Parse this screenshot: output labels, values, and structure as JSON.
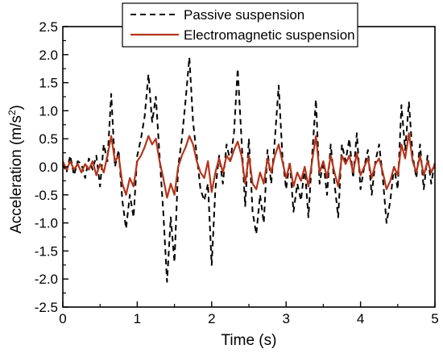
{
  "chart_data": {
    "type": "line",
    "xlabel": "Time (s)",
    "ylabel_main": "Acceleration (m/s",
    "ylabel_sup": "2",
    "ylabel_close": ")",
    "xlim": [
      0,
      5
    ],
    "ylim": [
      -2.5,
      2.5
    ],
    "xticks": [
      "0",
      "1",
      "2",
      "3",
      "4",
      "5"
    ],
    "yticks": [
      "2.5",
      "2.0",
      "1.5",
      "1.0",
      "0.5",
      "0.0",
      "-0.5",
      "-1.0",
      "-1.5",
      "-2.0",
      "-2.5"
    ],
    "legend_position": "top-right",
    "grid": false,
    "series": [
      {
        "name": "Passive suspension",
        "style": "dashed",
        "color": "#000000",
        "points": [
          [
            0.0,
            0.05
          ],
          [
            0.05,
            -0.1
          ],
          [
            0.1,
            0.2
          ],
          [
            0.15,
            -0.15
          ],
          [
            0.2,
            0.1
          ],
          [
            0.25,
            0.05
          ],
          [
            0.3,
            -0.2
          ],
          [
            0.35,
            0.15
          ],
          [
            0.4,
            -0.05
          ],
          [
            0.45,
            0.2
          ],
          [
            0.5,
            -0.35
          ],
          [
            0.55,
            0.4
          ],
          [
            0.6,
            0.1
          ],
          [
            0.65,
            1.3
          ],
          [
            0.7,
            0.0
          ],
          [
            0.75,
            0.3
          ],
          [
            0.8,
            -0.6
          ],
          [
            0.85,
            -1.1
          ],
          [
            0.9,
            -0.5
          ],
          [
            0.95,
            -0.9
          ],
          [
            1.0,
            0.2
          ],
          [
            1.05,
            0.5
          ],
          [
            1.1,
            0.9
          ],
          [
            1.15,
            1.65
          ],
          [
            1.2,
            0.8
          ],
          [
            1.25,
            1.25
          ],
          [
            1.3,
            0.2
          ],
          [
            1.35,
            -0.8
          ],
          [
            1.4,
            -2.05
          ],
          [
            1.45,
            -0.9
          ],
          [
            1.5,
            -1.7
          ],
          [
            1.55,
            0.0
          ],
          [
            1.6,
            0.5
          ],
          [
            1.65,
            1.2
          ],
          [
            1.7,
            1.95
          ],
          [
            1.75,
            0.8
          ],
          [
            1.8,
            0.2
          ],
          [
            1.85,
            -0.4
          ],
          [
            1.9,
            -0.6
          ],
          [
            1.95,
            -0.3
          ],
          [
            2.0,
            -1.75
          ],
          [
            2.05,
            -0.4
          ],
          [
            2.1,
            0.2
          ],
          [
            2.15,
            -0.3
          ],
          [
            2.2,
            0.4
          ],
          [
            2.25,
            0.1
          ],
          [
            2.3,
            0.6
          ],
          [
            2.35,
            1.75
          ],
          [
            2.4,
            0.5
          ],
          [
            2.45,
            -0.7
          ],
          [
            2.5,
            0.5
          ],
          [
            2.55,
            -0.8
          ],
          [
            2.6,
            -1.2
          ],
          [
            2.65,
            -0.5
          ],
          [
            2.7,
            -1.0
          ],
          [
            2.75,
            0.3
          ],
          [
            2.8,
            -0.3
          ],
          [
            2.85,
            0.5
          ],
          [
            2.9,
            1.45
          ],
          [
            2.95,
            0.2
          ],
          [
            3.0,
            -0.4
          ],
          [
            3.05,
            0.1
          ],
          [
            3.1,
            -0.8
          ],
          [
            3.15,
            -0.3
          ],
          [
            3.2,
            -0.6
          ],
          [
            3.25,
            0.0
          ],
          [
            3.3,
            -0.9
          ],
          [
            3.35,
            0.2
          ],
          [
            3.4,
            1.2
          ],
          [
            3.45,
            -0.3
          ],
          [
            3.5,
            0.1
          ],
          [
            3.55,
            -0.5
          ],
          [
            3.6,
            0.4
          ],
          [
            3.65,
            -0.3
          ],
          [
            3.7,
            -0.9
          ],
          [
            3.75,
            0.4
          ],
          [
            3.8,
            0.1
          ],
          [
            3.85,
            0.5
          ],
          [
            3.9,
            -0.2
          ],
          [
            3.95,
            0.6
          ],
          [
            4.0,
            -0.4
          ],
          [
            4.05,
            0.0
          ],
          [
            4.1,
            0.3
          ],
          [
            4.15,
            -0.5
          ],
          [
            4.2,
            0.1
          ],
          [
            4.25,
            0.4
          ],
          [
            4.3,
            -0.2
          ],
          [
            4.35,
            -1.0
          ],
          [
            4.4,
            -0.6
          ],
          [
            4.45,
            0.0
          ],
          [
            4.5,
            -0.4
          ],
          [
            4.55,
            1.1
          ],
          [
            4.6,
            0.3
          ],
          [
            4.65,
            1.15
          ],
          [
            4.7,
            0.2
          ],
          [
            4.75,
            -0.2
          ],
          [
            4.8,
            0.4
          ],
          [
            4.85,
            -0.4
          ],
          [
            4.9,
            0.2
          ],
          [
            4.95,
            -0.3
          ],
          [
            5.0,
            0.1
          ]
        ]
      },
      {
        "name": "Electromagnetic suspension",
        "style": "solid",
        "color": "#b5341a",
        "points": [
          [
            0.0,
            0.1
          ],
          [
            0.05,
            -0.05
          ],
          [
            0.1,
            0.1
          ],
          [
            0.15,
            -0.05
          ],
          [
            0.2,
            0.05
          ],
          [
            0.25,
            -0.1
          ],
          [
            0.3,
            0.05
          ],
          [
            0.35,
            -0.05
          ],
          [
            0.4,
            0.1
          ],
          [
            0.45,
            -0.15
          ],
          [
            0.5,
            0.05
          ],
          [
            0.55,
            -0.1
          ],
          [
            0.6,
            0.2
          ],
          [
            0.65,
            0.55
          ],
          [
            0.7,
            0.1
          ],
          [
            0.75,
            0.2
          ],
          [
            0.8,
            -0.3
          ],
          [
            0.85,
            -0.5
          ],
          [
            0.9,
            -0.2
          ],
          [
            0.95,
            -0.35
          ],
          [
            1.0,
            0.1
          ],
          [
            1.05,
            0.2
          ],
          [
            1.1,
            0.35
          ],
          [
            1.15,
            0.55
          ],
          [
            1.2,
            0.4
          ],
          [
            1.25,
            0.5
          ],
          [
            1.3,
            0.1
          ],
          [
            1.35,
            -0.2
          ],
          [
            1.4,
            -0.55
          ],
          [
            1.45,
            -0.3
          ],
          [
            1.5,
            -0.5
          ],
          [
            1.55,
            0.0
          ],
          [
            1.6,
            0.2
          ],
          [
            1.65,
            0.35
          ],
          [
            1.7,
            0.55
          ],
          [
            1.75,
            0.4
          ],
          [
            1.8,
            0.1
          ],
          [
            1.85,
            -0.1
          ],
          [
            1.9,
            -0.2
          ],
          [
            1.95,
            0.1
          ],
          [
            2.0,
            -0.45
          ],
          [
            2.05,
            -0.1
          ],
          [
            2.1,
            0.15
          ],
          [
            2.15,
            -0.1
          ],
          [
            2.2,
            0.2
          ],
          [
            2.25,
            0.1
          ],
          [
            2.3,
            0.3
          ],
          [
            2.35,
            0.45
          ],
          [
            2.4,
            0.2
          ],
          [
            2.45,
            -0.3
          ],
          [
            2.5,
            0.2
          ],
          [
            2.55,
            -0.3
          ],
          [
            2.6,
            -0.4
          ],
          [
            2.65,
            -0.1
          ],
          [
            2.7,
            -0.3
          ],
          [
            2.75,
            0.15
          ],
          [
            2.8,
            -0.1
          ],
          [
            2.85,
            0.2
          ],
          [
            2.9,
            0.4
          ],
          [
            2.95,
            0.1
          ],
          [
            3.0,
            -0.2
          ],
          [
            3.05,
            0.05
          ],
          [
            3.1,
            -0.35
          ],
          [
            3.15,
            -0.1
          ],
          [
            3.2,
            -0.25
          ],
          [
            3.25,
            0.0
          ],
          [
            3.3,
            -0.35
          ],
          [
            3.35,
            0.1
          ],
          [
            3.4,
            0.55
          ],
          [
            3.45,
            -0.1
          ],
          [
            3.5,
            0.1
          ],
          [
            3.55,
            -0.2
          ],
          [
            3.6,
            0.2
          ],
          [
            3.65,
            -0.1
          ],
          [
            3.7,
            -0.35
          ],
          [
            3.75,
            0.2
          ],
          [
            3.8,
            0.05
          ],
          [
            3.85,
            0.2
          ],
          [
            3.9,
            -0.1
          ],
          [
            3.95,
            0.25
          ],
          [
            4.0,
            -0.15
          ],
          [
            4.05,
            0.0
          ],
          [
            4.1,
            0.15
          ],
          [
            4.15,
            -0.2
          ],
          [
            4.2,
            0.05
          ],
          [
            4.25,
            0.15
          ],
          [
            4.3,
            -0.1
          ],
          [
            4.35,
            -0.4
          ],
          [
            4.4,
            -0.25
          ],
          [
            4.45,
            0.0
          ],
          [
            4.5,
            -0.15
          ],
          [
            4.55,
            0.4
          ],
          [
            4.6,
            0.15
          ],
          [
            4.65,
            0.6
          ],
          [
            4.7,
            0.1
          ],
          [
            4.75,
            -0.1
          ],
          [
            4.8,
            0.2
          ],
          [
            4.85,
            -0.15
          ],
          [
            4.9,
            0.1
          ],
          [
            4.95,
            -0.1
          ],
          [
            5.0,
            0.05
          ]
        ]
      }
    ]
  }
}
